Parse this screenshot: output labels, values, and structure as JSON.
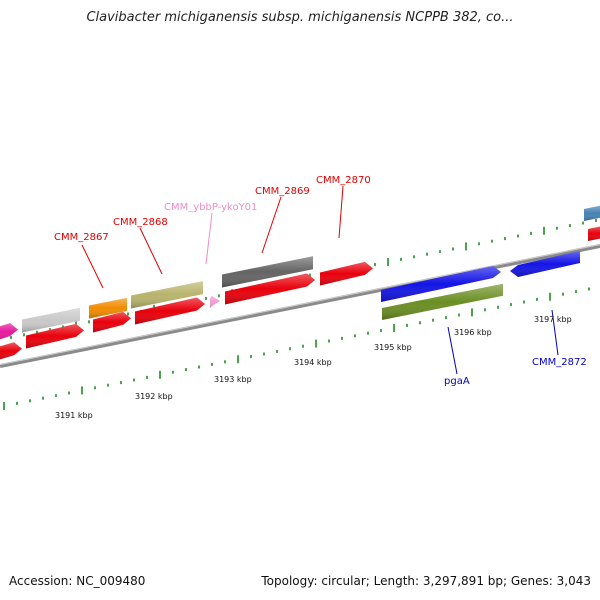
{
  "title": "Clavibacter michiganensis subsp. michiganensis NCPPB 382, co...",
  "footer": {
    "accession": "Accession: NC_009480",
    "topology": "Topology: circular; Length: 3,297,891 bp; Genes: 3,043"
  },
  "colors": {
    "red": "#e8000b",
    "magenta": "#e8189c",
    "light_gray": "#c9c9c9",
    "orange": "#f08c00",
    "khaki": "#b8b46c",
    "pink": "#f59ad3",
    "dark_gray": "#646464",
    "blue": "#1414e6",
    "olive": "#6b8e23",
    "steel_blue": "#4682b4",
    "tick_green": "#228b22",
    "label_red": "#e00000",
    "label_pink": "#f08cc8",
    "label_blue": "#0000c8"
  },
  "scale_labels": [
    "3191 kbp",
    "3192 kbp",
    "3193 kbp",
    "3194 kbp",
    "3195 kbp",
    "3196 kbp",
    "3197 kbp"
  ],
  "gene_labels": {
    "cmm_2867": "CMM_2867",
    "cmm_2868": "CMM_2868",
    "cmm_ybp": "CMM_ybbP-ykoY01",
    "cmm_2869": "CMM_2869",
    "cmm_2870": "CMM_2870",
    "pgaA": "pgaA",
    "cmm_2872": "CMM_2872"
  }
}
